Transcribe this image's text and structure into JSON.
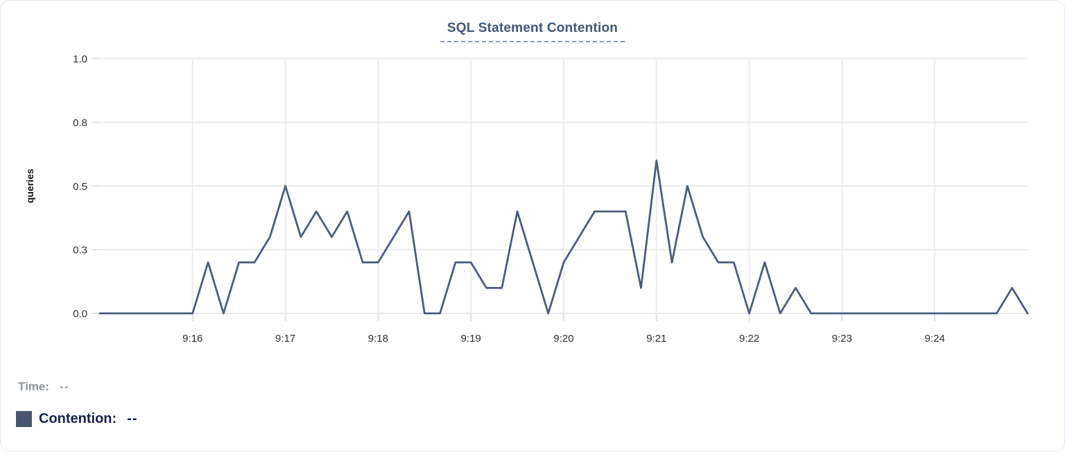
{
  "title": "SQL Statement Contention",
  "legend": {
    "time_label": "Time:",
    "time_value": "--",
    "series_label": "Contention:",
    "series_value": "--",
    "swatch_color": "#47566f"
  },
  "colors": {
    "title": "#3d5878",
    "title_underline": "#8a94c4",
    "line": "#4c5c7c",
    "axis_text": "#2d2d2d",
    "axis_title_text": "#111111",
    "grid": "#ececec",
    "tick": "#e0e0e0",
    "legend_muted": "#8d949c",
    "legend_text": "#132348",
    "card_border": "#e3e5e9"
  },
  "chart_data": {
    "type": "line",
    "title": "SQL Statement Contention",
    "xlabel": "",
    "ylabel": "queries",
    "ylim": [
      0,
      1
    ],
    "grid": true,
    "legend_position": "bottom-left",
    "yticks": [
      {
        "value": 0,
        "label": "0.0"
      },
      {
        "value": 0.25,
        "label": "0.3"
      },
      {
        "value": 0.5,
        "label": "0.5"
      },
      {
        "value": 0.75,
        "label": "0.8"
      },
      {
        "value": 1,
        "label": "1.0"
      }
    ],
    "xticks": [
      "9:16",
      "9:17",
      "9:18",
      "9:19",
      "9:20",
      "9:21",
      "9:22",
      "9:23",
      "9:24"
    ],
    "x_start": "9:15:00",
    "x_end": "9:25:00",
    "interval_seconds": 10,
    "series": [
      {
        "name": "Contention",
        "color": "#4c5c7c",
        "times": [
          "9:15:00",
          "9:15:10",
          "9:15:20",
          "9:15:30",
          "9:15:40",
          "9:15:50",
          "9:16:00",
          "9:16:10",
          "9:16:20",
          "9:16:30",
          "9:16:40",
          "9:16:50",
          "9:17:00",
          "9:17:10",
          "9:17:20",
          "9:17:30",
          "9:17:40",
          "9:17:50",
          "9:18:00",
          "9:18:10",
          "9:18:20",
          "9:18:30",
          "9:18:40",
          "9:18:50",
          "9:19:00",
          "9:19:10",
          "9:19:20",
          "9:19:30",
          "9:19:40",
          "9:19:50",
          "9:20:00",
          "9:20:10",
          "9:20:20",
          "9:20:30",
          "9:20:40",
          "9:20:50",
          "9:21:00",
          "9:21:10",
          "9:21:20",
          "9:21:30",
          "9:21:40",
          "9:21:50",
          "9:22:00",
          "9:22:10",
          "9:22:20",
          "9:22:30",
          "9:22:40",
          "9:22:50",
          "9:23:00",
          "9:23:10",
          "9:23:20",
          "9:23:30",
          "9:23:40",
          "9:23:50",
          "9:24:00",
          "9:24:10",
          "9:24:20",
          "9:24:30",
          "9:24:40",
          "9:24:50",
          "9:25:00"
        ],
        "values": [
          0,
          0,
          0,
          0,
          0,
          0,
          0,
          0.2,
          0,
          0.2,
          0.2,
          0.3,
          0.5,
          0.3,
          0.4,
          0.3,
          0.4,
          0.2,
          0.2,
          0.3,
          0.4,
          0,
          0,
          0.2,
          0.2,
          0.1,
          0.1,
          0.4,
          0.2,
          0,
          0.2,
          0.3,
          0.4,
          0.4,
          0.4,
          0.1,
          0.6,
          0.2,
          0.5,
          0.3,
          0.2,
          0.2,
          0,
          0.2,
          0,
          0.1,
          0,
          0,
          0,
          0,
          0,
          0,
          0,
          0,
          0,
          0,
          0,
          0,
          0,
          0.1,
          0
        ]
      }
    ]
  }
}
